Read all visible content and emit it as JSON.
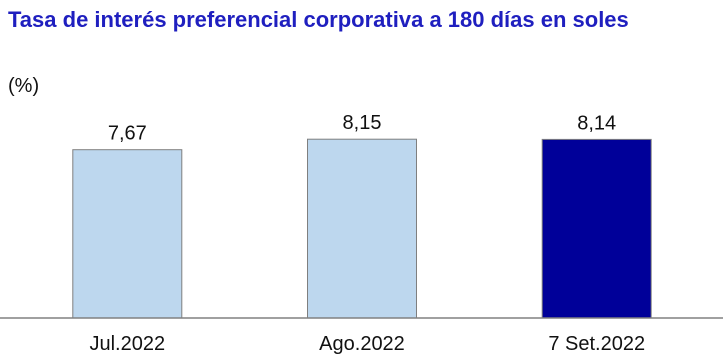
{
  "chart_data": {
    "type": "bar",
    "title": "Tasa de interés preferencial corporativa a 180 días en soles",
    "unit": "(%)",
    "categories": [
      "Jul.2022",
      "Ago.2022",
      "7 Set.2022"
    ],
    "values": [
      7.67,
      8.15,
      8.14
    ],
    "value_labels": [
      "7,67",
      "8,15",
      "8,14"
    ],
    "bar_colors": [
      "#bdd7ee",
      "#bdd7ee",
      "#000099"
    ],
    "bar_border_color": "#7f7f7f",
    "axis_color": "#808080",
    "title_color": "#1f1fbf",
    "ylim": [
      0,
      9.8
    ],
    "grid": false,
    "legend": "none"
  }
}
